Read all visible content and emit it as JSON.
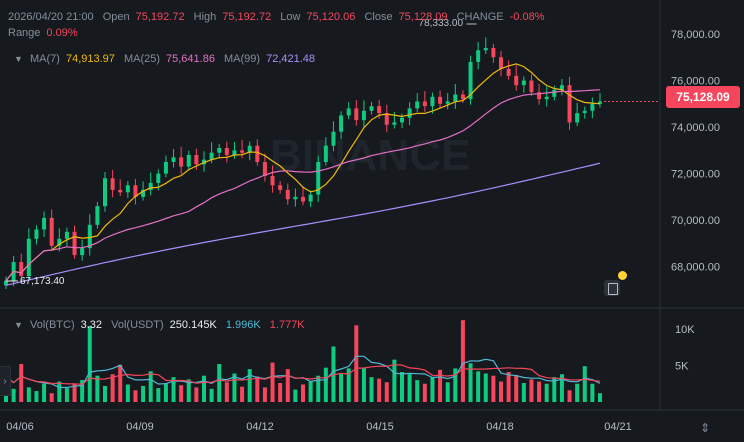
{
  "header": {
    "date": "2026/04/20 21:00",
    "open_label": "Open",
    "open": "75,192.72",
    "high_label": "High",
    "high": "75,192.72",
    "low_label": "Low",
    "low": "75,120.06",
    "close_label": "Close",
    "close": "75,128.09",
    "change_label": "CHANGE",
    "change": "-0.08%",
    "range_label": "Range",
    "range": "0.09%"
  },
  "ma": {
    "ma7_label": "MA(7)",
    "ma7": "74,913.97",
    "ma25_label": "MA(25)",
    "ma25": "75,641.86",
    "ma99_label": "MA(99)",
    "ma99": "72,421.48"
  },
  "volume": {
    "btc_label": "Vol(BTC)",
    "btc": "3.32",
    "usdt_label": "Vol(USDT)",
    "usdt": "250.145K",
    "ma5": "1.996K",
    "ma10": "1.777K"
  },
  "current_price": "75,128.09",
  "watermark": "BINANCE",
  "colors": {
    "up": "#0ecb81",
    "down": "#f6465d",
    "ma7": "#f0b90b",
    "ma25": "#e66fc6",
    "ma99": "#a98eff",
    "vol_ma5": "#4fb9d6",
    "vol_ma10": "#f6465d"
  },
  "chart_data": {
    "type": "candlestick",
    "y_axis": {
      "min": 67000,
      "max": 78600,
      "ticks": [
        "78,000.00",
        "76,000.00",
        "74,000.00",
        "72,000.00",
        "70,000.00",
        "68,000.00"
      ],
      "tick_values": [
        78000,
        76000,
        74000,
        72000,
        70000,
        68000
      ]
    },
    "x_axis": {
      "ticks": [
        "04/06",
        "04/09",
        "04/12",
        "04/15",
        "04/18",
        "04/21"
      ]
    },
    "annotations": {
      "high": "78,333.00",
      "low": "67,173.40"
    },
    "volume_axis": {
      "max": 11500,
      "ticks": [
        "10K",
        "5K"
      ],
      "tick_values": [
        10000,
        5000
      ]
    },
    "closes": [
      67400,
      68200,
      67600,
      69200,
      69600,
      70100,
      68900,
      69200,
      69500,
      68500,
      68800,
      69800,
      70600,
      71800,
      71300,
      71200,
      71500,
      71000,
      71300,
      71600,
      72000,
      72500,
      72700,
      72300,
      72800,
      72400,
      72600,
      72900,
      73100,
      72800,
      73000,
      72900,
      73200,
      72500,
      71900,
      71500,
      71300,
      70900,
      71000,
      70800,
      71100,
      72500,
      73200,
      73800,
      74500,
      74800,
      74300,
      74700,
      74900,
      74600,
      74100,
      74200,
      74400,
      74800,
      75100,
      74900,
      75300,
      75000,
      75100,
      75400,
      75200,
      76800,
      77300,
      77400,
      77000,
      76500,
      76200,
      75800,
      76000,
      75500,
      75200,
      75300,
      75600,
      75800,
      74200,
      74600,
      74700,
      75000,
      75100
    ],
    "volumes": [
      3500,
      1800,
      5200,
      2000,
      1500,
      2500,
      1200,
      2800,
      1900,
      2400,
      3000,
      10400,
      3600,
      2200,
      3800,
      5100,
      2400,
      1600,
      2200,
      4200,
      1900,
      2600,
      3400,
      2300,
      3100,
      2000,
      3600,
      1800,
      5200,
      2700,
      3900,
      2100,
      4500,
      3500,
      2000,
      5400,
      2600,
      4500,
      1700,
      2400,
      2800,
      3600,
      4700,
      7600,
      3900,
      4600,
      10500,
      4700,
      3400,
      3200,
      2700,
      5800,
      4100,
      3800,
      3000,
      2500,
      3400,
      4400,
      2700,
      4600,
      11200,
      5300,
      4200,
      3900,
      3600,
      2800,
      4100,
      3700,
      2600,
      3100,
      2800,
      2500,
      3400,
      3800,
      1600,
      2500,
      4900,
      2500,
      1200
    ]
  }
}
